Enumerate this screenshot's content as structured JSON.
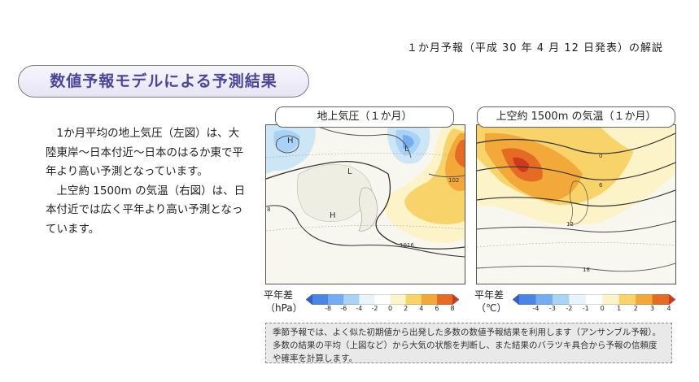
{
  "header": {
    "subtitle": "１か月予報（平成 30 年 4 月 12 日発表）の解説"
  },
  "section": {
    "title": "数値予報モデルによる予測結果"
  },
  "body": {
    "para1": "1か月平均の地上気圧（左図）は、大陸東岸～日本付近～日本のはるか東で平年より高い予測となっています。",
    "para2": "上空約 1500m の気温（右図）は、日本付近では広く平年より高い予測となっています。"
  },
  "maps": {
    "left": {
      "title": "地上気圧（１か月）",
      "labels": [
        "H",
        "L",
        "L",
        "H"
      ],
      "contour_labels": [
        "1016",
        "102",
        "8"
      ],
      "legend_label": "平年差",
      "unit": "（hPa）",
      "ticks": [
        "-8",
        "-6",
        "-4",
        "-2",
        "0",
        "2",
        "4",
        "6",
        "8"
      ],
      "palette": [
        "#2f5fd0",
        "#4a86e4",
        "#74aef0",
        "#a9d2f7",
        "#e8f3fc",
        "#ffffff",
        "#fdf3c8",
        "#f8d36a",
        "#f2a93a",
        "#e56b24",
        "#cf3a1a"
      ]
    },
    "right": {
      "title": "上空約 1500m の気温（１か月）",
      "contour_labels": [
        "0",
        "6",
        "12",
        "18"
      ],
      "legend_label": "平年差",
      "unit": "（℃）",
      "ticks": [
        "-4",
        "-3",
        "-2",
        "-1",
        "0",
        "1",
        "2",
        "3",
        "4"
      ],
      "palette": [
        "#2f5fd0",
        "#4a86e4",
        "#74aef0",
        "#a9d2f7",
        "#e8f3fc",
        "#ffffff",
        "#fdf3c8",
        "#f8d36a",
        "#f2a93a",
        "#e56b24",
        "#cf3a1a"
      ]
    }
  },
  "note": {
    "text": "季節予報では、よく似た初期値から出発した多数の数値予報結果を利用します（アンサンブル予報）。多数の結果の平均（上図など）から大気の状態を判断し、また結果のバラツキ具合から予報の信頼度や確率を計算します。"
  }
}
